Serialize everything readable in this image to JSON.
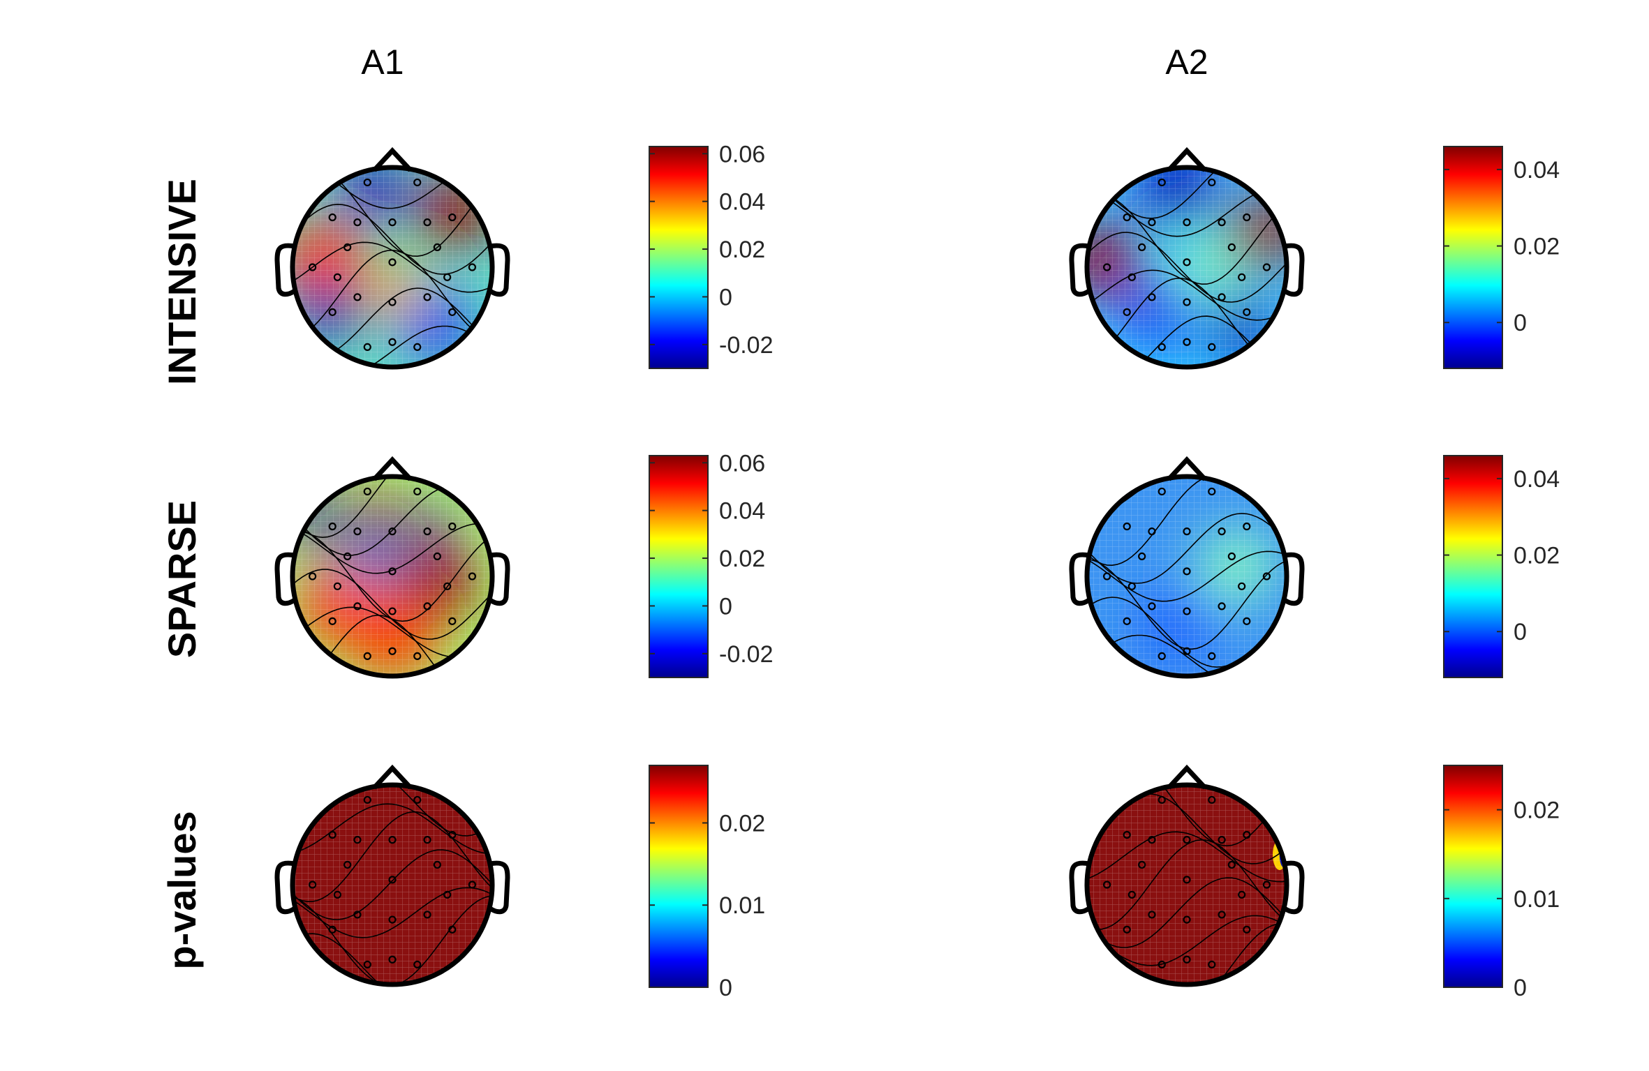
{
  "columns": [
    "A1",
    "A2"
  ],
  "rows": [
    "INTENSIVE",
    "SPARSE",
    "p-values"
  ],
  "colormap": [
    "#00008f",
    "#0000ff",
    "#0080ff",
    "#00ffff",
    "#80ff80",
    "#ffff00",
    "#ff8000",
    "#ff0000",
    "#800000"
  ],
  "panels": [
    {
      "id": "a1-intensive",
      "base": "#5fe0c4",
      "blobs": [
        [
          -0.2,
          0.78,
          0.25,
          -1
        ],
        [
          0.62,
          0.55,
          0.3,
          1
        ],
        [
          -0.7,
          0.05,
          0.35,
          0.8
        ],
        [
          -0.6,
          -0.45,
          0.25,
          -0.9
        ],
        [
          0.05,
          -0.25,
          0.25,
          0.6
        ],
        [
          0.45,
          -0.6,
          0.3,
          -0.5
        ]
      ],
      "colorbar": {
        "min": -0.03,
        "max": 0.063,
        "ticks": [
          "0.06",
          "0.04",
          "0.02",
          "0",
          "-0.02"
        ],
        "tickvals": [
          0.06,
          0.04,
          0.02,
          0,
          -0.02
        ]
      }
    },
    {
      "id": "a2-intensive",
      "base": "#38c8ff",
      "blobs": [
        [
          -0.1,
          0.8,
          0.3,
          -0.9
        ],
        [
          0.78,
          0.35,
          0.3,
          1
        ],
        [
          -0.85,
          0.05,
          0.3,
          1
        ],
        [
          0.55,
          -0.6,
          0.25,
          -0.8
        ],
        [
          -0.3,
          -0.45,
          0.3,
          -0.4
        ],
        [
          0.2,
          0.0,
          0.25,
          0.2
        ]
      ],
      "colorbar": {
        "min": -0.012,
        "max": 0.046,
        "ticks": [
          "0.04",
          "0.02",
          "0"
        ],
        "tickvals": [
          0.04,
          0.02,
          0
        ]
      }
    },
    {
      "id": "a1-sparse",
      "base": "#a8f070",
      "blobs": [
        [
          -0.78,
          0.55,
          0.2,
          -1
        ],
        [
          -0.15,
          0.6,
          0.18,
          1
        ],
        [
          0.38,
          0.5,
          0.15,
          -1
        ],
        [
          0.45,
          -0.05,
          0.3,
          0.9
        ],
        [
          0,
          -0.6,
          0.35,
          0.8
        ],
        [
          -0.6,
          -0.3,
          0.3,
          0.7
        ],
        [
          -0.2,
          0.2,
          0.2,
          -0.3
        ]
      ],
      "colorbar": {
        "min": -0.03,
        "max": 0.063,
        "ticks": [
          "0.06",
          "0.04",
          "0.02",
          "0",
          "-0.02"
        ],
        "tickvals": [
          0.06,
          0.04,
          0.02,
          0,
          -0.02
        ]
      }
    },
    {
      "id": "a2-sparse",
      "base": "#3d95f2",
      "blobs": [
        [
          -0.1,
          -0.5,
          0.3,
          -0.25
        ],
        [
          0.5,
          0.1,
          0.3,
          0.15
        ]
      ],
      "colorbar": {
        "min": -0.012,
        "max": 0.046,
        "ticks": [
          "0.04",
          "0.02",
          "0"
        ],
        "tickvals": [
          0.04,
          0.02,
          0
        ]
      }
    },
    {
      "id": "a1-pvalues",
      "base": "#8a1010",
      "blobs": [],
      "colorbar": {
        "min": 0,
        "max": 0.027,
        "ticks": [
          "0.02",
          "0.01",
          "0"
        ],
        "tickvals": [
          0.02,
          0.01,
          0
        ]
      }
    },
    {
      "id": "a2-pvalues",
      "base": "#8a1010",
      "blobs": [],
      "edge_spot": true,
      "colorbar": {
        "min": 0,
        "max": 0.025,
        "ticks": [
          "0.02",
          "0.01",
          "0"
        ],
        "tickvals": [
          0.02,
          0.01,
          0
        ]
      }
    }
  ]
}
